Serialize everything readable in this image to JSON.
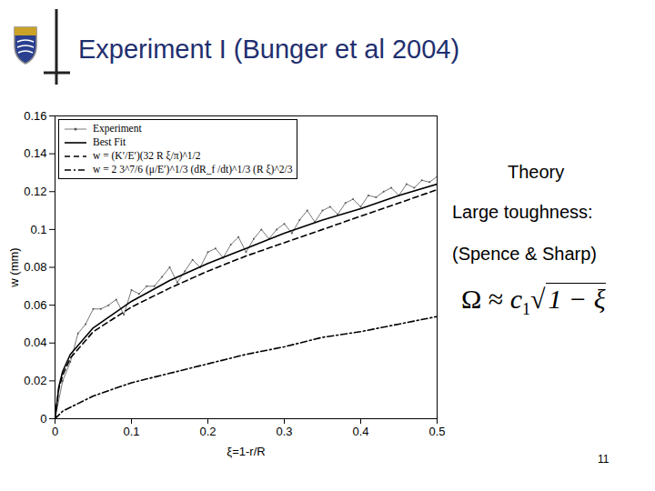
{
  "chart_data": {
    "type": "line",
    "title": "Experiment I (Bunger et al 2004)",
    "x_label": "ξ=1-r/R",
    "y_label": "w (mm)",
    "xlim": [
      0,
      0.5
    ],
    "xticks": [
      0,
      0.1,
      0.2,
      0.3,
      0.4,
      0.5
    ],
    "ylim": [
      0,
      0.16
    ],
    "yticks": [
      0,
      0.02,
      0.04,
      0.06,
      0.08,
      0.1,
      0.12,
      0.14,
      0.16
    ],
    "legend": "top-left",
    "grid": false,
    "series": [
      {
        "name": "Experiment",
        "color": "#555555",
        "line_style": "solid",
        "marker": "dot",
        "x": [
          0,
          0.01,
          0.02,
          0.03,
          0.04,
          0.05,
          0.06,
          0.07,
          0.08,
          0.09,
          0.1,
          0.11,
          0.12,
          0.13,
          0.14,
          0.15,
          0.16,
          0.17,
          0.18,
          0.19,
          0.2,
          0.21,
          0.22,
          0.23,
          0.24,
          0.25,
          0.26,
          0.27,
          0.28,
          0.29,
          0.3,
          0.31,
          0.32,
          0.33,
          0.34,
          0.35,
          0.36,
          0.37,
          0.38,
          0.39,
          0.4,
          0.41,
          0.42,
          0.43,
          0.44,
          0.45,
          0.46,
          0.47,
          0.48,
          0.49,
          0.5
        ],
        "values": [
          0,
          0.02,
          0.03,
          0.045,
          0.05,
          0.058,
          0.058,
          0.06,
          0.063,
          0.055,
          0.068,
          0.066,
          0.07,
          0.07,
          0.075,
          0.08,
          0.072,
          0.078,
          0.084,
          0.08,
          0.088,
          0.09,
          0.085,
          0.092,
          0.096,
          0.088,
          0.095,
          0.1,
          0.095,
          0.1,
          0.103,
          0.098,
          0.105,
          0.11,
          0.104,
          0.11,
          0.112,
          0.108,
          0.114,
          0.116,
          0.112,
          0.118,
          0.117,
          0.12,
          0.122,
          0.118,
          0.124,
          0.122,
          0.126,
          0.125,
          0.128
        ]
      },
      {
        "name": "Best Fit",
        "color": "#000000",
        "line_style": "solid",
        "x": [
          0,
          0.005,
          0.01,
          0.02,
          0.05,
          0.1,
          0.15,
          0.2,
          0.25,
          0.3,
          0.35,
          0.4,
          0.45,
          0.5
        ],
        "values": [
          0,
          0.017,
          0.025,
          0.034,
          0.048,
          0.062,
          0.073,
          0.082,
          0.09,
          0.098,
          0.105,
          0.111,
          0.118,
          0.124
        ]
      },
      {
        "name": "w = (K′/E′)(32 R ξ/π)^1/2",
        "color": "#000000",
        "line_style": "dashed",
        "x": [
          0,
          0.005,
          0.01,
          0.02,
          0.05,
          0.1,
          0.15,
          0.2,
          0.25,
          0.3,
          0.35,
          0.4,
          0.45,
          0.5
        ],
        "values": [
          0,
          0.016,
          0.023,
          0.032,
          0.046,
          0.059,
          0.069,
          0.078,
          0.086,
          0.093,
          0.1,
          0.107,
          0.114,
          0.121
        ]
      },
      {
        "name": "w = 2 3^7/6 (μ/E′)^1/3 (dR_f /dt)^1/3 (R ξ)^2/3",
        "color": "#000000",
        "line_style": "dashdot",
        "x": [
          0,
          0.005,
          0.01,
          0.02,
          0.05,
          0.1,
          0.15,
          0.2,
          0.25,
          0.3,
          0.35,
          0.4,
          0.45,
          0.5
        ],
        "values": [
          0,
          0.002,
          0.004,
          0.006,
          0.012,
          0.019,
          0.024,
          0.029,
          0.034,
          0.038,
          0.043,
          0.046,
          0.05,
          0.054
        ]
      }
    ]
  },
  "slide": {
    "side_text": [
      "Theory",
      "Large toughness:",
      "(Spence & Sharp)"
    ],
    "formula": {
      "lhs": "Ω",
      "relation": "≈",
      "coefficient": "c",
      "subscript": "1",
      "root": "√",
      "radicand": "1 − ξ"
    },
    "page": 11
  }
}
